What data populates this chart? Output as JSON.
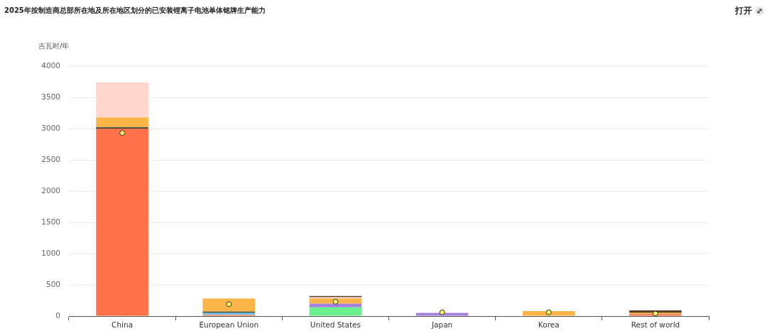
{
  "chart_data": {
    "type": "bar",
    "title": "2025年按制造商总部所在地及所在地区划分的已安装锂离子电池单体铭牌生产能力",
    "ylabel": "吉瓦时/年",
    "annotations": [
      "打开"
    ],
    "categories": [
      "China",
      "European Union",
      "United States",
      "Japan",
      "Korea",
      "Rest of world"
    ],
    "stacked": true,
    "series": [
      {
        "color": "#ff7148",
        "values": [
          3000,
          20,
          null,
          null,
          null,
          30
        ]
      },
      {
        "color": "#6cf08e",
        "values": [
          null,
          null,
          140,
          null,
          null,
          null
        ]
      },
      {
        "color": "#6ec6e8",
        "values": [
          null,
          30,
          null,
          null,
          null,
          null
        ]
      },
      {
        "color": "#2f3f36",
        "values": [
          20,
          20,
          null,
          null,
          null,
          null
        ]
      },
      {
        "color": "#a47fdc",
        "values": [
          null,
          null,
          60,
          50,
          null,
          null
        ]
      },
      {
        "color": "#fbb447",
        "values": [
          160,
          210,
          80,
          null,
          80,
          20
        ]
      },
      {
        "color": "#ffd5cc",
        "values": [
          560,
          null,
          20,
          null,
          null,
          null
        ]
      },
      {
        "color": "#5c3b1e",
        "values": [
          null,
          null,
          20,
          null,
          null,
          40
        ]
      },
      {
        "type": "scatter",
        "color": "#fff06a",
        "x": [
          "China",
          "European Union",
          "United States",
          "Japan",
          "Korea",
          "Rest of world"
        ],
        "values": [
          2930,
          190,
          230,
          60,
          60,
          40
        ]
      }
    ],
    "marker": "circle",
    "ylim": [
      0,
      4000
    ],
    "yticks": [
      0,
      500,
      1000,
      1500,
      2000,
      2500,
      3000,
      3500,
      4000
    ],
    "grid": "y",
    "legend": false
  }
}
